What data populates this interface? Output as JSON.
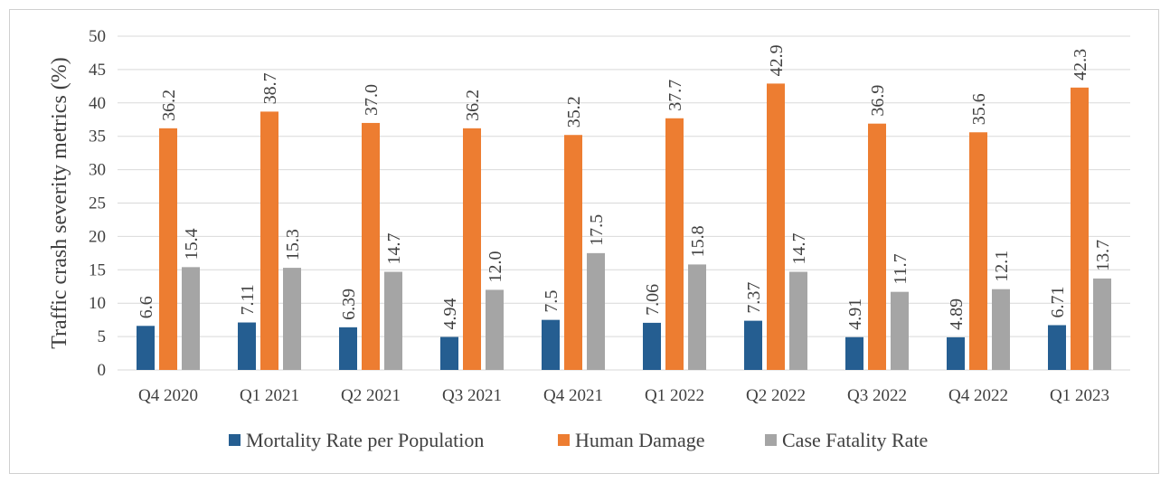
{
  "chart_data": {
    "type": "bar",
    "title": "",
    "xlabel": "",
    "ylabel": "Traffic crash severity metrics (%)",
    "ylim": [
      0,
      50
    ],
    "yticks": [
      0,
      5,
      10,
      15,
      20,
      25,
      30,
      35,
      40,
      45,
      50
    ],
    "grid": true,
    "legend_position": "bottom",
    "categories": [
      "Q4  2020",
      "Q1  2021",
      "Q2  2021",
      "Q3  2021",
      "Q4  2021",
      "Q1  2022",
      "Q2  2022",
      "Q3  2022",
      "Q4  2022",
      "Q1  2023"
    ],
    "series": [
      {
        "name": "Mortality Rate per Population",
        "color": "#255e91",
        "values": [
          6.6,
          7.11,
          6.39,
          4.94,
          7.5,
          7.06,
          7.37,
          4.91,
          4.89,
          6.71
        ],
        "labels": [
          "6.6",
          "7.11",
          "6.39",
          "4.94",
          "7.5",
          "7.06",
          "7.37",
          "4.91",
          "4.89",
          "6.71"
        ]
      },
      {
        "name": "Human Damage",
        "color": "#ed7d31",
        "values": [
          36.2,
          38.7,
          37.0,
          36.2,
          35.2,
          37.7,
          42.9,
          36.9,
          35.6,
          42.3
        ],
        "labels": [
          "36.2",
          "38.7",
          "37.0",
          "36.2",
          "35.2",
          "37.7",
          "42.9",
          "36.9",
          "35.6",
          "42.3"
        ]
      },
      {
        "name": "Case Fatality Rate",
        "color": "#a5a5a5",
        "values": [
          15.4,
          15.3,
          14.7,
          12.0,
          17.5,
          15.8,
          14.7,
          11.7,
          12.1,
          13.7
        ],
        "labels": [
          "15.4",
          "15.3",
          "14.7",
          "12.0",
          "17.5",
          "15.8",
          "14.7",
          "11.7",
          "12.1",
          "13.7"
        ]
      }
    ]
  }
}
